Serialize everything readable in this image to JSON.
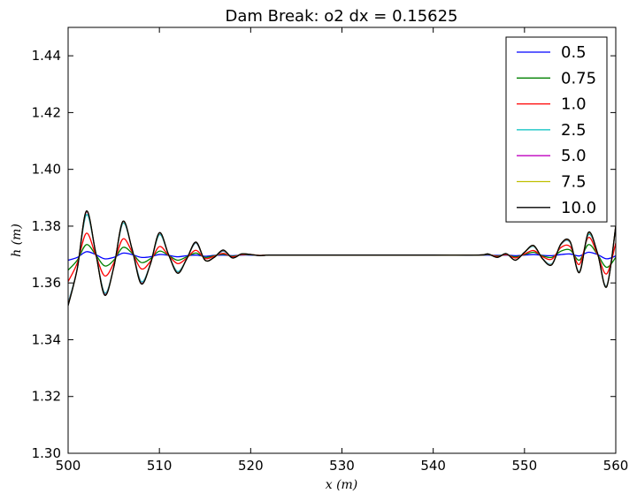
{
  "chart_data": {
    "type": "line",
    "title": "Dam Break: o2 dx = 0.15625",
    "xlabel": "x (m)",
    "ylabel": "h (m)",
    "xlim": [
      500,
      560
    ],
    "ylim": [
      1.3,
      1.45
    ],
    "xticks": [
      "500",
      "510",
      "520",
      "530",
      "540",
      "550",
      "560"
    ],
    "yticks": [
      "1.30",
      "1.32",
      "1.34",
      "1.36",
      "1.38",
      "1.40",
      "1.42",
      "1.44"
    ],
    "grid": false,
    "legend_position": "top-right",
    "series": [
      {
        "name": "0.5",
        "color": "#0000ff",
        "x": [
          500,
          501,
          502,
          503,
          504,
          505,
          506,
          507,
          508,
          509,
          510,
          511,
          512,
          513,
          514,
          515,
          516,
          517,
          518,
          519,
          520,
          521,
          522,
          525,
          530,
          540,
          545,
          546,
          547,
          548,
          549,
          550,
          551,
          552,
          553,
          554,
          555,
          556,
          557,
          558,
          559,
          560
        ],
        "y": [
          1.368,
          1.369,
          1.371,
          1.37,
          1.3685,
          1.369,
          1.3705,
          1.37,
          1.369,
          1.3692,
          1.37,
          1.3697,
          1.3692,
          1.3696,
          1.3698,
          1.3694,
          1.3697,
          1.3698,
          1.3696,
          1.3698,
          1.3698,
          1.3697,
          1.3698,
          1.3698,
          1.3698,
          1.3698,
          1.3698,
          1.3698,
          1.3697,
          1.3698,
          1.3696,
          1.3698,
          1.37,
          1.3697,
          1.3696,
          1.37,
          1.3702,
          1.3695,
          1.3708,
          1.37,
          1.3685,
          1.3695
        ]
      },
      {
        "name": "0.75",
        "color": "#008000",
        "x": [
          500,
          501,
          502,
          503,
          504,
          505,
          506,
          507,
          508,
          509,
          510,
          511,
          512,
          513,
          514,
          515,
          516,
          517,
          518,
          519,
          520,
          521,
          522,
          525,
          530,
          540,
          545,
          546,
          547,
          548,
          549,
          550,
          551,
          552,
          553,
          554,
          555,
          556,
          557,
          558,
          559,
          560
        ],
        "y": [
          1.3645,
          1.368,
          1.3735,
          1.37,
          1.366,
          1.368,
          1.3725,
          1.3705,
          1.3672,
          1.3685,
          1.3712,
          1.3697,
          1.368,
          1.3692,
          1.3705,
          1.369,
          1.3696,
          1.3701,
          1.3694,
          1.3699,
          1.3699,
          1.3697,
          1.3698,
          1.3698,
          1.3698,
          1.3698,
          1.3698,
          1.37,
          1.3695,
          1.3699,
          1.3692,
          1.37,
          1.3708,
          1.3695,
          1.369,
          1.3712,
          1.3716,
          1.368,
          1.3735,
          1.37,
          1.3655,
          1.369
        ]
      },
      {
        "name": "1.0",
        "color": "#ff0000",
        "x": [
          500,
          501,
          502,
          503,
          504,
          505,
          506,
          507,
          508,
          509,
          510,
          511,
          512,
          513,
          514,
          515,
          516,
          517,
          518,
          519,
          520,
          521,
          522,
          525,
          530,
          540,
          545,
          546,
          547,
          548,
          549,
          550,
          551,
          552,
          553,
          554,
          555,
          556,
          557,
          558,
          559,
          560
        ],
        "y": [
          1.3605,
          1.367,
          1.3775,
          1.37,
          1.3625,
          1.367,
          1.3755,
          1.371,
          1.365,
          1.3675,
          1.3728,
          1.3697,
          1.3668,
          1.3688,
          1.3715,
          1.3686,
          1.3694,
          1.3704,
          1.3692,
          1.37,
          1.37,
          1.3697,
          1.3698,
          1.3698,
          1.3698,
          1.3698,
          1.3698,
          1.3701,
          1.3693,
          1.37,
          1.3688,
          1.3702,
          1.3714,
          1.3692,
          1.3684,
          1.3725,
          1.3728,
          1.3665,
          1.376,
          1.37,
          1.3632,
          1.374
        ]
      },
      {
        "name": "2.5",
        "color": "#00bfbf",
        "x": [
          500,
          501,
          502,
          503,
          504,
          505,
          506,
          507,
          508,
          509,
          510,
          511,
          512,
          513,
          514,
          515,
          516,
          517,
          518,
          519,
          520,
          521,
          522,
          525,
          530,
          540,
          545,
          546,
          547,
          548,
          549,
          550,
          551,
          552,
          553,
          554,
          555,
          556,
          557,
          558,
          559,
          560
        ],
        "y": [
          1.353,
          1.365,
          1.384,
          1.371,
          1.3565,
          1.3655,
          1.381,
          1.372,
          1.3605,
          1.3665,
          1.377,
          1.37,
          1.364,
          1.3685,
          1.374,
          1.368,
          1.369,
          1.3712,
          1.3688,
          1.3702,
          1.37,
          1.3696,
          1.3698,
          1.3698,
          1.3698,
          1.3698,
          1.3698,
          1.3702,
          1.369,
          1.3703,
          1.368,
          1.3708,
          1.3728,
          1.3685,
          1.3668,
          1.3735,
          1.3742,
          1.364,
          1.377,
          1.3705,
          1.359,
          1.38
        ]
      },
      {
        "name": "5.0",
        "color": "#bf00bf",
        "x": [
          500,
          501,
          502,
          503,
          504,
          505,
          506,
          507,
          508,
          509,
          510,
          511,
          512,
          513,
          514,
          515,
          516,
          517,
          518,
          519,
          520,
          521,
          522,
          525,
          530,
          540,
          545,
          546,
          547,
          548,
          549,
          550,
          551,
          552,
          553,
          554,
          555,
          556,
          557,
          558,
          559,
          560
        ],
        "y": [
          1.3525,
          1.365,
          1.385,
          1.371,
          1.356,
          1.3655,
          1.3815,
          1.372,
          1.36,
          1.3665,
          1.3775,
          1.37,
          1.3636,
          1.3685,
          1.3742,
          1.368,
          1.369,
          1.3714,
          1.3688,
          1.3702,
          1.37,
          1.3696,
          1.3698,
          1.3698,
          1.3698,
          1.3698,
          1.3698,
          1.3702,
          1.369,
          1.3703,
          1.368,
          1.3708,
          1.373,
          1.3684,
          1.3666,
          1.3736,
          1.3744,
          1.3638,
          1.3775,
          1.3705,
          1.3588,
          1.38
        ]
      },
      {
        "name": "7.5",
        "color": "#bfbf00",
        "x": [
          500,
          501,
          502,
          503,
          504,
          505,
          506,
          507,
          508,
          509,
          510,
          511,
          512,
          513,
          514,
          515,
          516,
          517,
          518,
          519,
          520,
          521,
          522,
          525,
          530,
          540,
          545,
          546,
          547,
          548,
          549,
          550,
          551,
          552,
          553,
          554,
          555,
          556,
          557,
          558,
          559,
          560
        ],
        "y": [
          1.3522,
          1.365,
          1.3852,
          1.371,
          1.3558,
          1.3655,
          1.3816,
          1.372,
          1.3598,
          1.3665,
          1.3776,
          1.37,
          1.3635,
          1.3685,
          1.3743,
          1.368,
          1.369,
          1.3715,
          1.3688,
          1.3702,
          1.37,
          1.3696,
          1.3698,
          1.3698,
          1.3698,
          1.3698,
          1.3698,
          1.3702,
          1.369,
          1.3703,
          1.368,
          1.3708,
          1.3731,
          1.3684,
          1.3665,
          1.3737,
          1.3745,
          1.3637,
          1.3776,
          1.3705,
          1.3587,
          1.38
        ]
      },
      {
        "name": "10.0",
        "color": "#000000",
        "x": [
          500,
          501,
          502,
          503,
          504,
          505,
          506,
          507,
          508,
          509,
          510,
          511,
          512,
          513,
          514,
          515,
          516,
          517,
          518,
          519,
          520,
          521,
          522,
          525,
          530,
          540,
          545,
          546,
          547,
          548,
          549,
          550,
          551,
          552,
          553,
          554,
          555,
          556,
          557,
          558,
          559,
          560
        ],
        "y": [
          1.352,
          1.365,
          1.3853,
          1.371,
          1.3557,
          1.3655,
          1.3817,
          1.372,
          1.3597,
          1.3665,
          1.3777,
          1.37,
          1.3634,
          1.3685,
          1.3744,
          1.368,
          1.369,
          1.3716,
          1.3688,
          1.3702,
          1.37,
          1.3696,
          1.3698,
          1.3698,
          1.3698,
          1.3698,
          1.3698,
          1.3702,
          1.369,
          1.3703,
          1.368,
          1.3708,
          1.3732,
          1.3684,
          1.3664,
          1.3738,
          1.3746,
          1.3636,
          1.3778,
          1.3705,
          1.3586,
          1.38
        ]
      }
    ]
  }
}
